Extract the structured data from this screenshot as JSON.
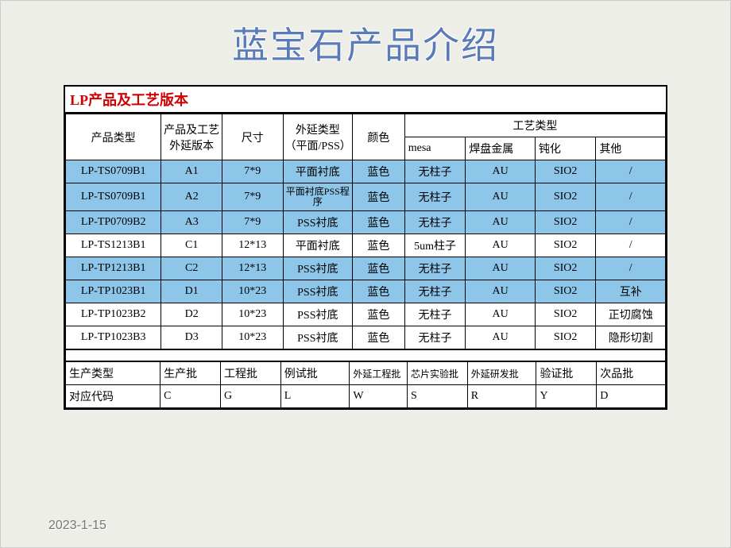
{
  "title": "蓝宝石产品介绍",
  "table_title": "LP产品及工艺版本",
  "date": "2023-1-15",
  "colors": {
    "highlight": "#8ec6ea",
    "title_color": "#5b7bb8",
    "table_title_color": "#d00000",
    "background": "#eceee7"
  },
  "main_table": {
    "header_row1": [
      "产品类型",
      "产品及工艺外延版本",
      "尺寸",
      "外延类型（平面/PSS）",
      "颜色",
      "工艺类型"
    ],
    "header_row2": [
      "mesa",
      "焊盘金属",
      "钝化",
      "其他"
    ],
    "rows": [
      {
        "cells": [
          "LP-TS0709B1",
          "A1",
          "7*9",
          "平面衬底",
          "蓝色",
          "无柱子",
          "AU",
          "SIO2",
          "/"
        ],
        "highlight": true
      },
      {
        "cells": [
          "LP-TS0709B1",
          "A2",
          "7*9",
          "平面衬底PSS程序",
          "蓝色",
          "无柱子",
          "AU",
          "SIO2",
          "/"
        ],
        "highlight": true
      },
      {
        "cells": [
          "LP-TP0709B2",
          "A3",
          "7*9",
          "PSS衬底",
          "蓝色",
          "无柱子",
          "AU",
          "SIO2",
          "/"
        ],
        "highlight": true
      },
      {
        "cells": [
          "LP-TS1213B1",
          "C1",
          "12*13",
          "平面衬底",
          "蓝色",
          "5um柱子",
          "AU",
          "SIO2",
          "/"
        ],
        "highlight": false
      },
      {
        "cells": [
          "LP-TP1213B1",
          "C2",
          "12*13",
          "PSS衬底",
          "蓝色",
          "无柱子",
          "AU",
          "SIO2",
          "/"
        ],
        "highlight": true
      },
      {
        "cells": [
          "LP-TP1023B1",
          "D1",
          "10*23",
          "PSS衬底",
          "蓝色",
          "无柱子",
          "AU",
          "SIO2",
          "互补"
        ],
        "highlight": true
      },
      {
        "cells": [
          "LP-TP1023B2",
          "D2",
          "10*23",
          "PSS衬底",
          "蓝色",
          "无柱子",
          "AU",
          "SIO2",
          "正切腐蚀"
        ],
        "highlight": false
      },
      {
        "cells": [
          "LP-TP1023B3",
          "D3",
          "10*23",
          "PSS衬底",
          "蓝色",
          "无柱子",
          "AU",
          "SIO2",
          "隐形切割"
        ],
        "highlight": false
      }
    ]
  },
  "bottom_table": {
    "row1": [
      "生产类型",
      "生产批",
      "工程批",
      "例试批",
      "外延工程批",
      "芯片实验批",
      "外延研发批",
      "验证批",
      "次品批"
    ],
    "row2": [
      "对应代码",
      "C",
      "G",
      "L",
      "W",
      "S",
      "R",
      "Y",
      "D"
    ]
  }
}
